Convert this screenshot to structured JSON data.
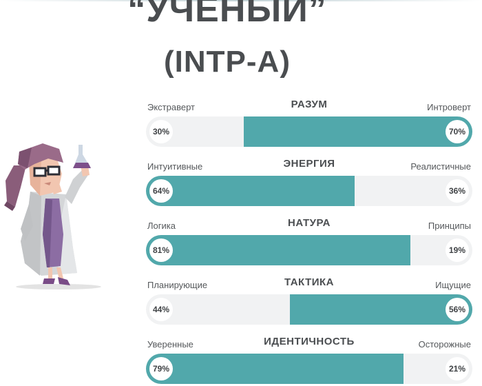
{
  "header": {
    "title": "“УЧЕНЫЙ”",
    "subtitle": "(INTP-A)"
  },
  "accent_color": "#51a8ab",
  "track_color": "#f1f2f3",
  "character": {
    "icon": "scientist-character-illustration"
  },
  "scales": [
    {
      "title": "РАЗУМ",
      "left_label": "Экстраверт",
      "right_label": "Интроверт",
      "left_value": 30,
      "right_value": 70,
      "left_pct": "30%",
      "right_pct": "70%",
      "dominant": "right"
    },
    {
      "title": "ЭНЕРГИЯ",
      "left_label": "Интуитивные",
      "right_label": "Реалистичные",
      "left_value": 64,
      "right_value": 36,
      "left_pct": "64%",
      "right_pct": "36%",
      "dominant": "left"
    },
    {
      "title": "НАТУРА",
      "left_label": "Логика",
      "right_label": "Принципы",
      "left_value": 81,
      "right_value": 19,
      "left_pct": "81%",
      "right_pct": "19%",
      "dominant": "left"
    },
    {
      "title": "ТАКТИКА",
      "left_label": "Планирующие",
      "right_label": "Ищущие",
      "left_value": 44,
      "right_value": 56,
      "left_pct": "44%",
      "right_pct": "56%",
      "dominant": "right"
    },
    {
      "title": "ИДЕНТИЧНОСТЬ",
      "left_label": "Уверенные",
      "right_label": "Осторожные",
      "left_value": 79,
      "right_value": 21,
      "left_pct": "79%",
      "right_pct": "21%",
      "dominant": "left"
    }
  ]
}
